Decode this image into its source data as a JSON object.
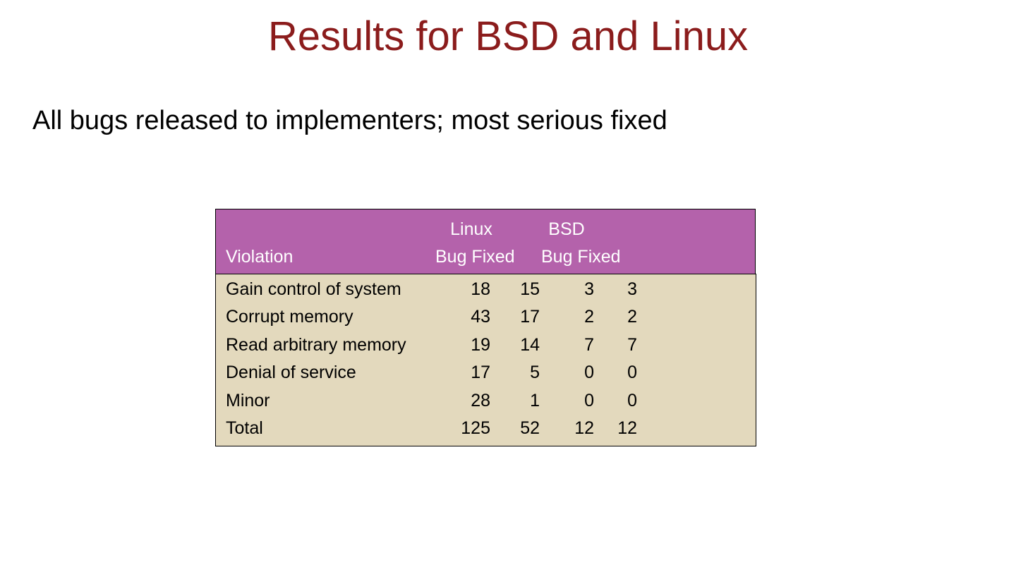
{
  "title": "Results for BSD and Linux",
  "subtitle": "All bugs released to implementers; most serious fixed",
  "table": {
    "groups": [
      "Linux",
      "BSD"
    ],
    "first_header": "Violation",
    "subheaders": [
      "Bug Fixed",
      "Bug Fixed"
    ],
    "rows": [
      [
        "Gain control of system",
        18,
        15,
        3,
        3
      ],
      [
        "Corrupt memory",
        43,
        17,
        2,
        2
      ],
      [
        "Read arbitrary memory",
        19,
        14,
        7,
        7
      ],
      [
        "Denial of service",
        17,
        5,
        0,
        0
      ],
      [
        "Minor",
        28,
        1,
        0,
        0
      ],
      [
        "Total",
        125,
        52,
        12,
        12
      ]
    ]
  }
}
